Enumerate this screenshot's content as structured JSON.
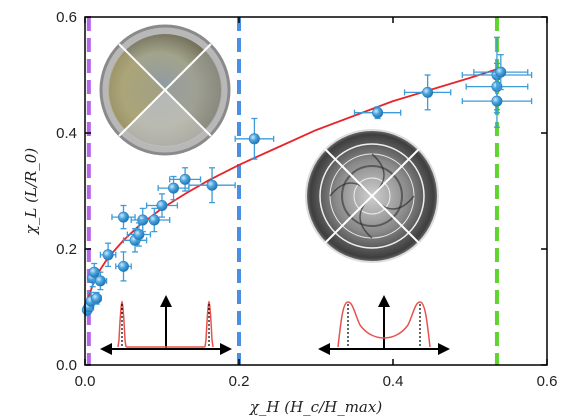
{
  "chart_data": {
    "type": "scatter",
    "title": "",
    "xlabel": "χ_H (H_c/H_max)",
    "ylabel": "χ_L (L/R_0)",
    "xlim": [
      0,
      0.6
    ],
    "ylim": [
      0,
      0.6
    ],
    "x_ticks": [
      "0.0",
      "0.2",
      "0.4",
      "0.6"
    ],
    "y_ticks": [
      "0.0",
      "0.2",
      "0.4",
      "0.6"
    ],
    "grid": false,
    "legend": "none",
    "series": [
      {
        "color": "#3d9bd8",
        "points": [
          {
            "x": 0.003,
            "y": 0.095,
            "xerr": 0.004,
            "yerr": 0.01
          },
          {
            "x": 0.005,
            "y": 0.1,
            "xerr": 0.004,
            "yerr": 0.01
          },
          {
            "x": 0.008,
            "y": 0.11,
            "xerr": 0.005,
            "yerr": 0.015
          },
          {
            "x": 0.01,
            "y": 0.15,
            "xerr": 0.006,
            "yerr": 0.015
          },
          {
            "x": 0.012,
            "y": 0.16,
            "xerr": 0.006,
            "yerr": 0.015
          },
          {
            "x": 0.015,
            "y": 0.115,
            "xerr": 0.006,
            "yerr": 0.01
          },
          {
            "x": 0.02,
            "y": 0.145,
            "xerr": 0.008,
            "yerr": 0.015
          },
          {
            "x": 0.03,
            "y": 0.19,
            "xerr": 0.01,
            "yerr": 0.02
          },
          {
            "x": 0.05,
            "y": 0.17,
            "xerr": 0.01,
            "yerr": 0.025
          },
          {
            "x": 0.05,
            "y": 0.255,
            "xerr": 0.015,
            "yerr": 0.02
          },
          {
            "x": 0.065,
            "y": 0.215,
            "xerr": 0.015,
            "yerr": 0.02
          },
          {
            "x": 0.07,
            "y": 0.225,
            "xerr": 0.015,
            "yerr": 0.02
          },
          {
            "x": 0.075,
            "y": 0.25,
            "xerr": 0.015,
            "yerr": 0.02
          },
          {
            "x": 0.09,
            "y": 0.25,
            "xerr": 0.02,
            "yerr": 0.02
          },
          {
            "x": 0.1,
            "y": 0.275,
            "xerr": 0.02,
            "yerr": 0.02
          },
          {
            "x": 0.115,
            "y": 0.305,
            "xerr": 0.02,
            "yerr": 0.02
          },
          {
            "x": 0.13,
            "y": 0.32,
            "xerr": 0.02,
            "yerr": 0.02
          },
          {
            "x": 0.165,
            "y": 0.31,
            "xerr": 0.03,
            "yerr": 0.03
          },
          {
            "x": 0.22,
            "y": 0.39,
            "xerr": 0.025,
            "yerr": 0.035
          },
          {
            "x": 0.38,
            "y": 0.435,
            "xerr": 0.03,
            "yerr": 0.01
          },
          {
            "x": 0.445,
            "y": 0.47,
            "xerr": 0.03,
            "yerr": 0.03
          },
          {
            "x": 0.535,
            "y": 0.5,
            "xerr": 0.045,
            "yerr": 0.065
          },
          {
            "x": 0.535,
            "y": 0.48,
            "xerr": 0.04,
            "yerr": 0.04
          },
          {
            "x": 0.535,
            "y": 0.455,
            "xerr": 0.045,
            "yerr": 0.045
          },
          {
            "x": 0.54,
            "y": 0.505,
            "xerr": 0.035,
            "yerr": 0.03
          }
        ]
      }
    ],
    "fit_curve": {
      "color": "#e8242b",
      "x": [
        0.002,
        0.005,
        0.01,
        0.02,
        0.03,
        0.05,
        0.07,
        0.1,
        0.13,
        0.16,
        0.2,
        0.25,
        0.3,
        0.35,
        0.4,
        0.45,
        0.5,
        0.535
      ],
      "y": [
        0.1,
        0.118,
        0.138,
        0.165,
        0.185,
        0.215,
        0.24,
        0.27,
        0.295,
        0.318,
        0.345,
        0.375,
        0.405,
        0.43,
        0.455,
        0.475,
        0.495,
        0.51
      ]
    },
    "vertical_lines": [
      {
        "x": 0.005,
        "color": "#b567e6"
      },
      {
        "x": 0.2,
        "color": "#4a90e2"
      },
      {
        "x": 0.535,
        "color": "#5fd42c"
      }
    ]
  }
}
